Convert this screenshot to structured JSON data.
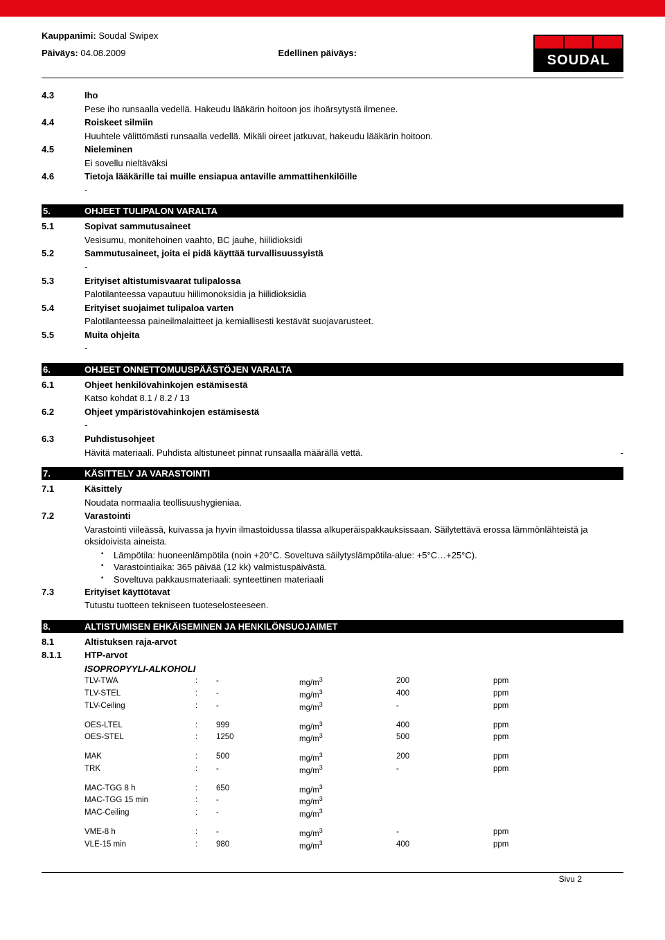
{
  "top_bar_color": "#e30613",
  "header": {
    "kauppanimi_label": "Kauppanimi:",
    "kauppanimi_value": "Soudal Swipex",
    "paivays_label": "Päiväys:",
    "paivays_value": "04.08.2009",
    "edellinen_label": "Edellinen päiväys:",
    "logo_text": "SOUDAL"
  },
  "sections": {
    "s4": {
      "items": [
        {
          "num": "4.3",
          "title": "Iho",
          "body": "Pese iho runsaalla vedellä. Hakeudu lääkärin hoitoon jos ihoärsytystä ilmenee."
        },
        {
          "num": "4.4",
          "title": "Roiskeet silmiin",
          "body": "Huuhtele välittömästi runsaalla vedellä. Mikäli oireet jatkuvat, hakeudu lääkärin hoitoon."
        },
        {
          "num": "4.5",
          "title": "Nieleminen",
          "body": "Ei sovellu nieltäväksi"
        },
        {
          "num": "4.6",
          "title": "Tietoja lääkärille tai muille ensiapua antaville ammattihenkilöille",
          "body": "-"
        }
      ]
    },
    "bar5": {
      "num": "5.",
      "title": "OHJEET TULIPALON VARALTA"
    },
    "s5": {
      "items": [
        {
          "num": "5.1",
          "title": "Sopivat sammutusaineet",
          "body": "Vesisumu, monitehoinen vaahto, BC jauhe, hiilidioksidi"
        },
        {
          "num": "5.2",
          "title": "Sammutusaineet, joita ei pidä käyttää turvallisuussyistä",
          "body": "-"
        },
        {
          "num": "5.3",
          "title": "Erityiset altistumisvaarat tulipalossa",
          "body": "Palotilanteessa vapautuu hiilimonoksidia ja hiilidioksidia"
        },
        {
          "num": "5.4",
          "title": "Erityiset suojaimet tulipaloa varten",
          "body": "Palotilanteessa paineilmalaitteet ja kemiallisesti kestävät suojavarusteet."
        },
        {
          "num": "5.5",
          "title": "Muita ohjeita",
          "body": "-"
        }
      ]
    },
    "bar6": {
      "num": "6.",
      "title": "OHJEET ONNETTOMUUSPÄÄSTÖJEN VARALTA"
    },
    "s6": {
      "items": [
        {
          "num": "6.1",
          "title": "Ohjeet henkilövahinkojen estämisestä",
          "body": "Katso kohdat 8.1 / 8.2 / 13"
        },
        {
          "num": "6.2",
          "title": "Ohjeet ympäristövahinkojen estämisestä",
          "body": "-"
        },
        {
          "num": "6.3",
          "title": "Puhdistusohjeet",
          "body": "Hävitä materiaali. Puhdista altistuneet pinnat runsaalla määrällä vettä."
        }
      ],
      "trail_dash": "-"
    },
    "bar7": {
      "num": "7.",
      "title": "KÄSITTELY JA VARASTOINTI"
    },
    "s7": {
      "i1": {
        "num": "7.1",
        "title": "Käsittely",
        "body": "Noudata normaalia teollisuushygieniaa."
      },
      "i2": {
        "num": "7.2",
        "title": "Varastointi",
        "body": "Varastointi viileässä, kuivassa ja hyvin ilmastoidussa tilassa alkuperäispakkauksissaan. Säilytettävä erossa lämmönlähteistä ja oksidoivista aineista."
      },
      "bullets": [
        "Lämpötila: huoneenlämpötila (noin +20°C. Soveltuva säilytyslämpötila-alue: +5°C…+25°C).",
        "Varastointiaika: 365 päivää (12 kk) valmistuspäivästä.",
        "Soveltuva pakkausmateriaali: synteettinen materiaali"
      ],
      "i3": {
        "num": "7.3",
        "title": "Erityiset käyttötavat",
        "body": "Tutustu tuotteen tekniseen tuoteselosteeseen."
      }
    },
    "bar8": {
      "num": "8.",
      "title": "ALTISTUMISEN EHKÄISEMINEN JA HENKILÖNSUOJAIMET"
    },
    "s8": {
      "i1": {
        "num": "8.1",
        "title": "Altistuksen raja-arvot"
      },
      "i2": {
        "num": "8.1.1",
        "title": "HTP-arvot"
      },
      "substance": "ISOPROPYYLI-ALKOHOLI",
      "groups": [
        [
          {
            "label": "TLV-TWA",
            "colon": ":",
            "v1": "-",
            "unit": "mg/m",
            "v2": "200",
            "u2": "ppm"
          },
          {
            "label": "TLV-STEL",
            "colon": ":",
            "v1": "-",
            "unit": "mg/m",
            "v2": "400",
            "u2": "ppm"
          },
          {
            "label": "TLV-Ceiling",
            "colon": ":",
            "v1": "-",
            "unit": "mg/m",
            "v2": "-",
            "u2": "ppm"
          }
        ],
        [
          {
            "label": "OES-LTEL",
            "colon": ":",
            "v1": "999",
            "unit": "mg/m",
            "v2": "400",
            "u2": "ppm"
          },
          {
            "label": "OES-STEL",
            "colon": ":",
            "v1": "1250",
            "unit": "mg/m",
            "v2": "500",
            "u2": "ppm"
          }
        ],
        [
          {
            "label": "MAK",
            "colon": ":",
            "v1": "500",
            "unit": "mg/m",
            "v2": "200",
            "u2": "ppm"
          },
          {
            "label": "TRK",
            "colon": ":",
            "v1": "-",
            "unit": "mg/m",
            "v2": "-",
            "u2": "ppm"
          }
        ],
        [
          {
            "label": "MAC-TGG 8 h",
            "colon": ":",
            "v1": "650",
            "unit": "mg/m",
            "v2": "",
            "u2": ""
          },
          {
            "label": "MAC-TGG 15 min",
            "colon": ":",
            "v1": "-",
            "unit": "mg/m",
            "v2": "",
            "u2": ""
          },
          {
            "label": "MAC-Ceiling",
            "colon": ":",
            "v1": "-",
            "unit": "mg/m",
            "v2": "",
            "u2": ""
          }
        ],
        [
          {
            "label": "VME-8 h",
            "colon": ":",
            "v1": "-",
            "unit": "mg/m",
            "v2": "-",
            "u2": "ppm"
          },
          {
            "label": "VLE-15 min",
            "colon": ":",
            "v1": "980",
            "unit": "mg/m",
            "v2": "400",
            "u2": "ppm"
          }
        ]
      ]
    }
  },
  "footer": "Sivu 2"
}
